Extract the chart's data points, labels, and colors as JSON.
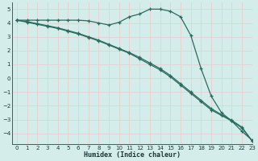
{
  "xlabel": "Humidex (Indice chaleur)",
  "xlim": [
    -0.5,
    23
  ],
  "ylim": [
    -4.8,
    5.5
  ],
  "yticks": [
    5,
    4,
    3,
    2,
    1,
    0,
    -1,
    -2,
    -3,
    -4
  ],
  "xticks": [
    0,
    1,
    2,
    3,
    4,
    5,
    6,
    7,
    8,
    9,
    10,
    11,
    12,
    13,
    14,
    15,
    16,
    17,
    18,
    19,
    20,
    21,
    22,
    23
  ],
  "background_color": "#d4ecea",
  "grid_major_color": "#c8e0de",
  "grid_minor_color": "#e8d0d0",
  "line_color": "#2a6b60",
  "line1_x": [
    0,
    1,
    2,
    3,
    4,
    5,
    6,
    7,
    8,
    9,
    10,
    11,
    12,
    13,
    14,
    15,
    16,
    17,
    18,
    19,
    20,
    21,
    22,
    23
  ],
  "line1_y": [
    4.2,
    4.2,
    4.2,
    4.2,
    4.2,
    4.2,
    4.2,
    4.15,
    4.0,
    3.85,
    4.05,
    4.45,
    4.65,
    5.0,
    5.0,
    4.85,
    4.45,
    3.1,
    0.7,
    -1.3,
    -2.5,
    -3.1,
    -3.85,
    -4.5
  ],
  "line2_x": [
    0,
    1,
    2,
    3,
    4,
    5,
    6,
    7,
    8,
    9,
    10,
    11,
    12,
    13,
    14,
    15,
    16,
    17,
    18,
    19,
    20,
    21,
    22,
    23
  ],
  "line2_y": [
    4.2,
    4.05,
    3.9,
    3.75,
    3.6,
    3.4,
    3.2,
    2.95,
    2.7,
    2.4,
    2.1,
    1.8,
    1.4,
    1.0,
    0.6,
    0.1,
    -0.5,
    -1.1,
    -1.7,
    -2.3,
    -2.7,
    -3.1,
    -3.6,
    -4.55
  ],
  "line3_x": [
    0,
    1,
    2,
    3,
    4,
    5,
    6,
    7,
    8,
    9,
    10,
    11,
    12,
    13,
    14,
    15,
    16,
    17,
    18,
    19,
    20,
    21,
    22,
    23
  ],
  "line3_y": [
    4.2,
    4.1,
    3.95,
    3.8,
    3.65,
    3.45,
    3.25,
    3.0,
    2.75,
    2.45,
    2.15,
    1.85,
    1.5,
    1.1,
    0.7,
    0.2,
    -0.4,
    -1.0,
    -1.6,
    -2.2,
    -2.65,
    -3.05,
    -3.55,
    -4.55
  ]
}
